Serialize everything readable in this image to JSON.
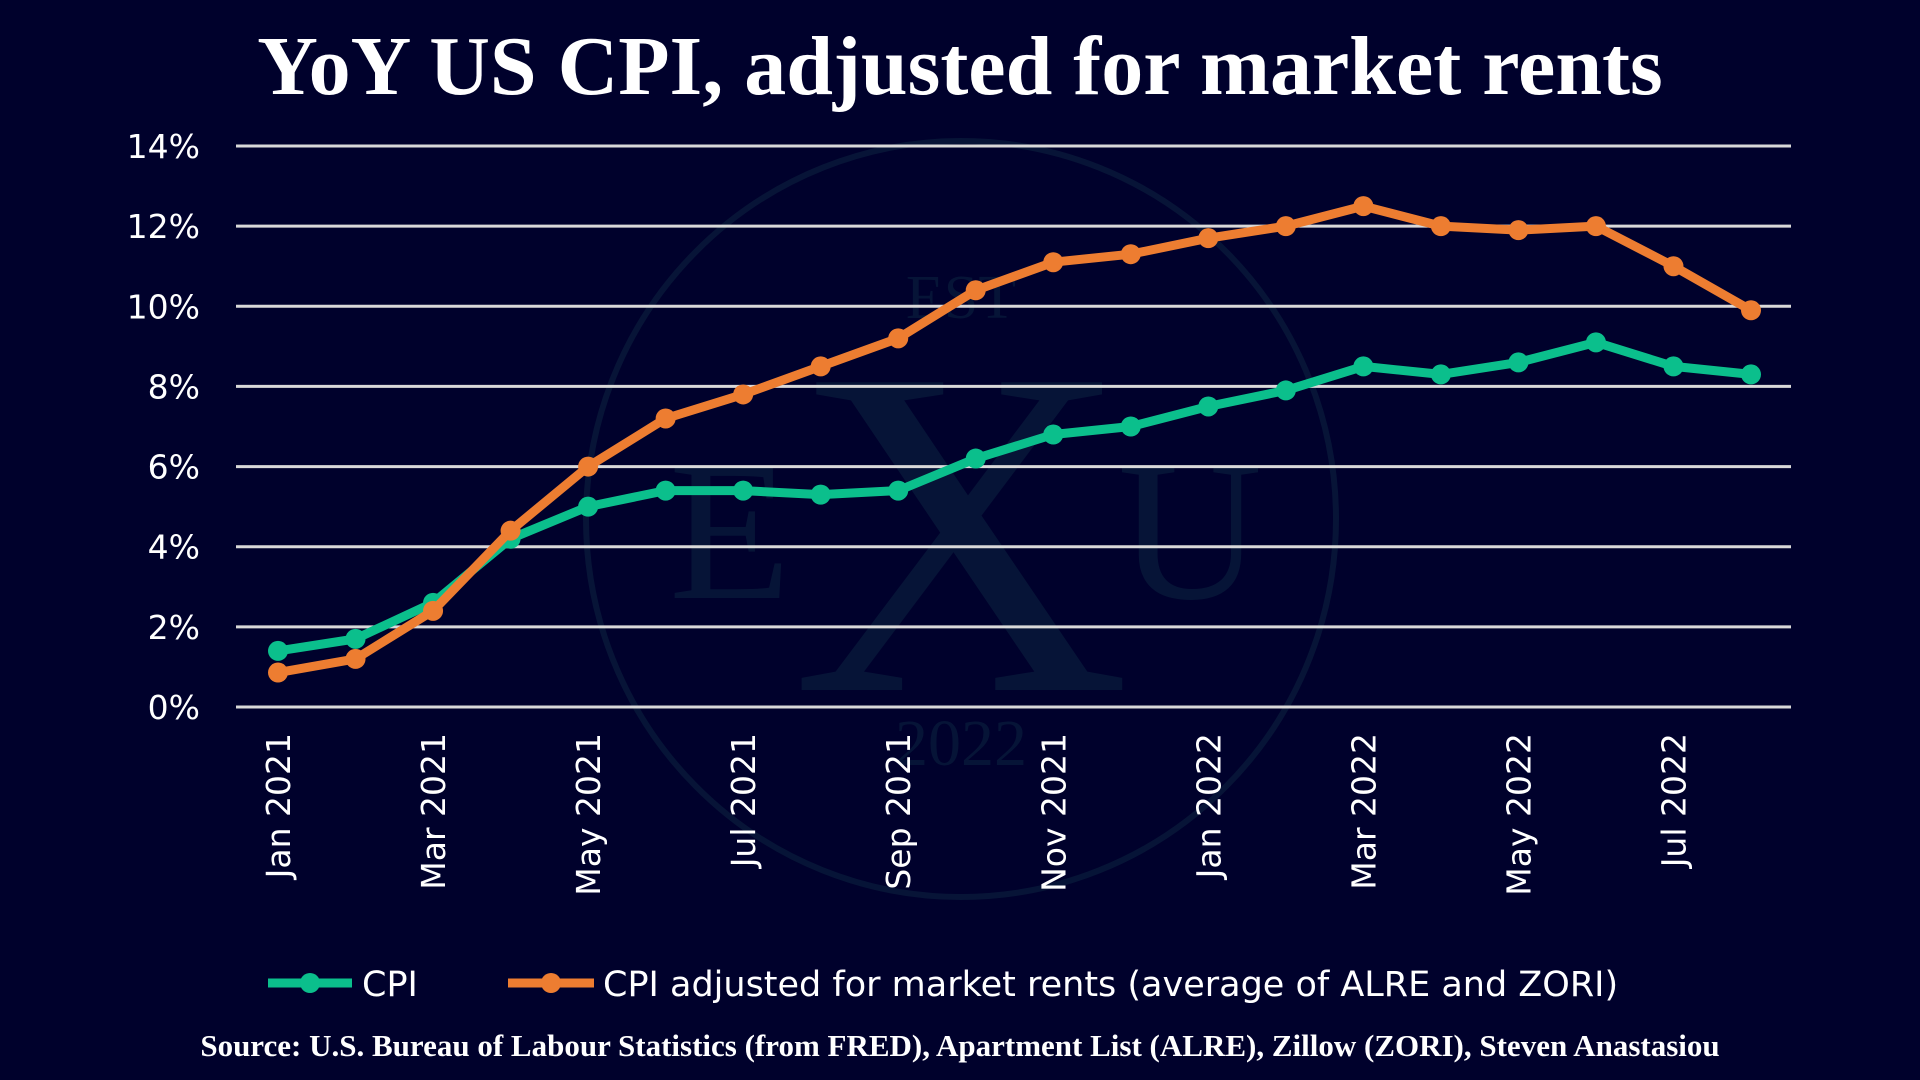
{
  "title": "YoY US CPI, adjusted for market rents",
  "source": "Source: U.S. Bureau of Labour Statistics (from FRED), Apartment List (ALRE), Zillow (ZORI), Steven Anastasiou",
  "watermark": {
    "text_top": "EST",
    "letters": [
      "E",
      "X",
      "U"
    ],
    "year": "2022"
  },
  "colors": {
    "background": "#00012c",
    "cpi": "#0bbf8c",
    "adjusted": "#ed7d31",
    "grid": "#d9d9d9"
  },
  "chart_data": {
    "type": "line",
    "title": "YoY US CPI, adjusted for market rents",
    "xlabel": "",
    "ylabel": "",
    "ylim": [
      0,
      14
    ],
    "y_ticks": [
      "0%",
      "2%",
      "4%",
      "6%",
      "8%",
      "10%",
      "12%",
      "14%"
    ],
    "grid": true,
    "legend_position": "bottom",
    "x": [
      "Jan 2021",
      "Feb 2021",
      "Mar 2021",
      "Apr 2021",
      "May 2021",
      "Jun 2021",
      "Jul 2021",
      "Aug 2021",
      "Sep 2021",
      "Oct 2021",
      "Nov 2021",
      "Dec 2021",
      "Jan 2022",
      "Feb 2022",
      "Mar 2022",
      "Apr 2022",
      "May 2022",
      "Jun 2022",
      "Jul 2022",
      "Aug 2022"
    ],
    "x_tick_labels": [
      "Jan 2021",
      "Mar 2021",
      "May 2021",
      "Jul 2021",
      "Sep 2021",
      "Nov 2021",
      "Jan 2022",
      "Mar 2022",
      "May 2022",
      "Jul 2022"
    ],
    "series": [
      {
        "name": "CPI",
        "color": "#0bbf8c",
        "values": [
          1.4,
          1.7,
          2.6,
          4.2,
          5.0,
          5.4,
          5.4,
          5.3,
          5.4,
          6.2,
          6.8,
          7.0,
          7.5,
          7.9,
          8.5,
          8.3,
          8.6,
          9.1,
          8.5,
          8.3
        ]
      },
      {
        "name": "CPI adjusted for market rents (average of ALRE and ZORI)",
        "color": "#ed7d31",
        "values": [
          0.86,
          1.2,
          2.4,
          4.4,
          6.0,
          7.2,
          7.8,
          8.5,
          9.2,
          10.4,
          11.1,
          11.3,
          11.7,
          12.0,
          12.5,
          12.0,
          11.9,
          12.0,
          11.0,
          9.9
        ]
      }
    ]
  }
}
